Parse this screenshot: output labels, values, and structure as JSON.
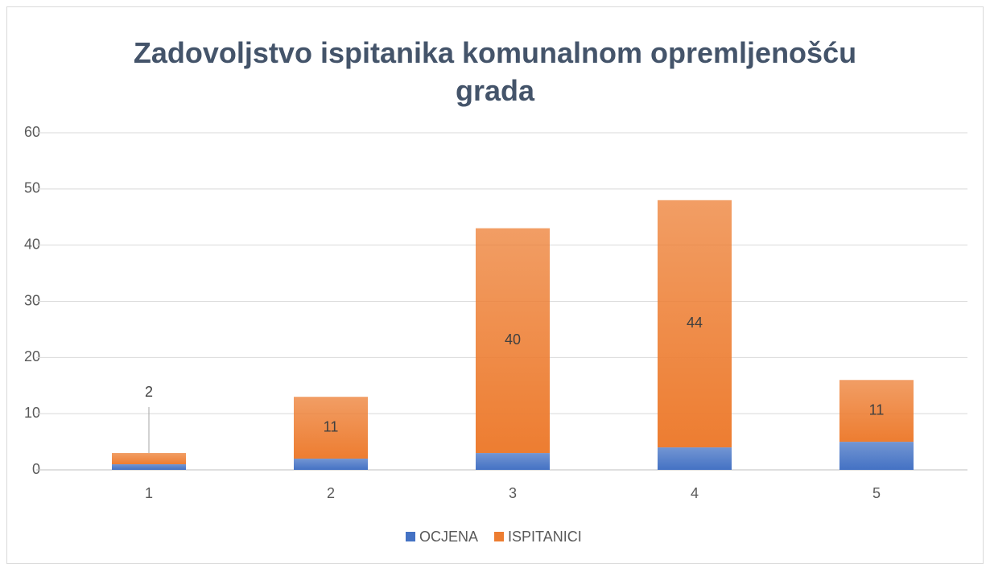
{
  "chart_data": {
    "type": "stacked_bar",
    "title": "Zadovoljstvo ispitanika komunalnom opremljenošću grada",
    "categories": [
      "1",
      "2",
      "3",
      "4",
      "5"
    ],
    "series": [
      {
        "name": "OCJENA",
        "color": "#4472c4",
        "values": [
          1,
          2,
          3,
          4,
          5
        ]
      },
      {
        "name": "ISPITANICI",
        "color": "#ed7d31",
        "values": [
          2,
          11,
          40,
          44,
          11
        ]
      }
    ],
    "ylim": [
      0,
      60
    ],
    "yticks": [
      0,
      10,
      20,
      30,
      40,
      50,
      60
    ],
    "grid": true,
    "legend": "bottom"
  }
}
